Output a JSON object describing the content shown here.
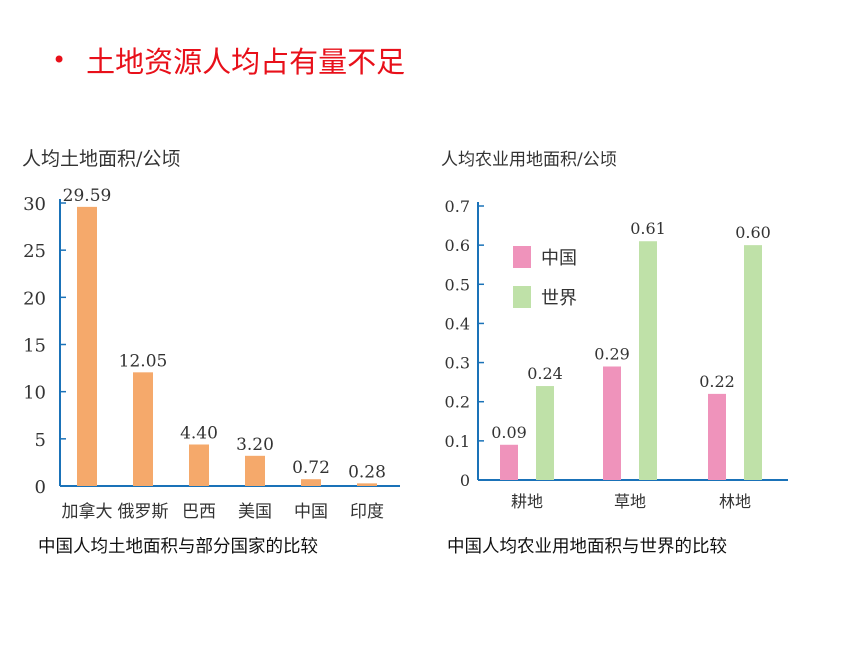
{
  "heading": {
    "bullet": "•",
    "title": "土地资源人均占有量不足"
  },
  "colors": {
    "heading": "#e8101a",
    "bar_land": "#f5a96b",
    "china": "#ef93bb",
    "world": "#bfe1a8",
    "axis": "#1a72b8"
  },
  "chart_data": [
    {
      "type": "bar",
      "title": "人均土地面积/公顷",
      "caption": "中国人均土地面积与部分国家的比较",
      "categories": [
        "加拿大",
        "俄罗斯",
        "巴西",
        "美国",
        "中国",
        "印度"
      ],
      "values": [
        29.59,
        12.05,
        4.4,
        3.2,
        0.72,
        0.28
      ],
      "value_labels": [
        "29.59",
        "12.05",
        "4.40",
        "3.20",
        "0.72",
        "0.28"
      ],
      "ylim": [
        0,
        30
      ],
      "yticks": [
        "0",
        "5",
        "10",
        "15",
        "20",
        "25",
        "30"
      ],
      "ytick_values": [
        0,
        5,
        10,
        15,
        20,
        25,
        30
      ]
    },
    {
      "type": "bar",
      "title": "人均农业用地面积/公顷",
      "caption": "中国人均农业用地面积与世界的比较",
      "categories": [
        "耕地",
        "草地",
        "林地"
      ],
      "series": [
        {
          "name": "中国",
          "values": [
            0.09,
            0.29,
            0.22
          ],
          "value_labels": [
            "0.09",
            "0.29",
            "0.22"
          ]
        },
        {
          "name": "世界",
          "values": [
            0.24,
            0.61,
            0.6
          ],
          "value_labels": [
            "0.24",
            "0.61",
            "0.60"
          ]
        }
      ],
      "ylim": [
        0,
        0.7
      ],
      "yticks": [
        "0",
        "0.1",
        "0.2",
        "0.3",
        "0.4",
        "0.5",
        "0.6",
        "0.7"
      ],
      "ytick_values": [
        0,
        0.1,
        0.2,
        0.3,
        0.4,
        0.5,
        0.6,
        0.7
      ],
      "legend": "top-left"
    }
  ]
}
